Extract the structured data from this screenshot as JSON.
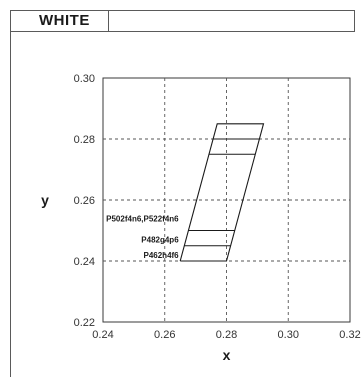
{
  "header": {
    "title": "WHITE"
  },
  "chart_data": {
    "type": "line",
    "title": "WHITE",
    "xlabel": "x",
    "ylabel": "y",
    "xlim": [
      0.24,
      0.32
    ],
    "ylim": [
      0.22,
      0.3
    ],
    "xticks": [
      0.24,
      0.26,
      0.28,
      0.3,
      0.32
    ],
    "yticks": [
      0.22,
      0.24,
      0.26,
      0.28,
      0.3
    ],
    "x_tick_labels": [
      "0.24",
      "0.26",
      "0.28",
      "0.30",
      "0.32"
    ],
    "y_tick_labels": [
      "0.22",
      "0.24",
      "0.26",
      "0.28",
      "0.30"
    ],
    "grid": true,
    "grid_style": "dashed",
    "outline": [
      {
        "x": 0.265,
        "y": 0.24
      },
      {
        "x": 0.28,
        "y": 0.24
      },
      {
        "x": 0.292,
        "y": 0.285
      },
      {
        "x": 0.277,
        "y": 0.285
      },
      {
        "x": 0.265,
        "y": 0.24
      }
    ],
    "bins": [
      {
        "y": 0.245,
        "x1": 0.2663,
        "x2": 0.2813
      },
      {
        "y": 0.25,
        "x1": 0.2677,
        "x2": 0.2827
      },
      {
        "y": 0.275,
        "x1": 0.2743,
        "x2": 0.2893
      },
      {
        "y": 0.28,
        "x1": 0.2757,
        "x2": 0.2907
      }
    ],
    "annotations": [
      {
        "text": "P502f4n6,P522f4n6",
        "x": 0.2645,
        "y": 0.253
      },
      {
        "text": "P482g4p6",
        "x": 0.2645,
        "y": 0.246
      },
      {
        "text": "P462h4f6",
        "x": 0.2645,
        "y": 0.241
      }
    ],
    "line_color": "#1a1a1a",
    "grid_color": "#555555"
  }
}
